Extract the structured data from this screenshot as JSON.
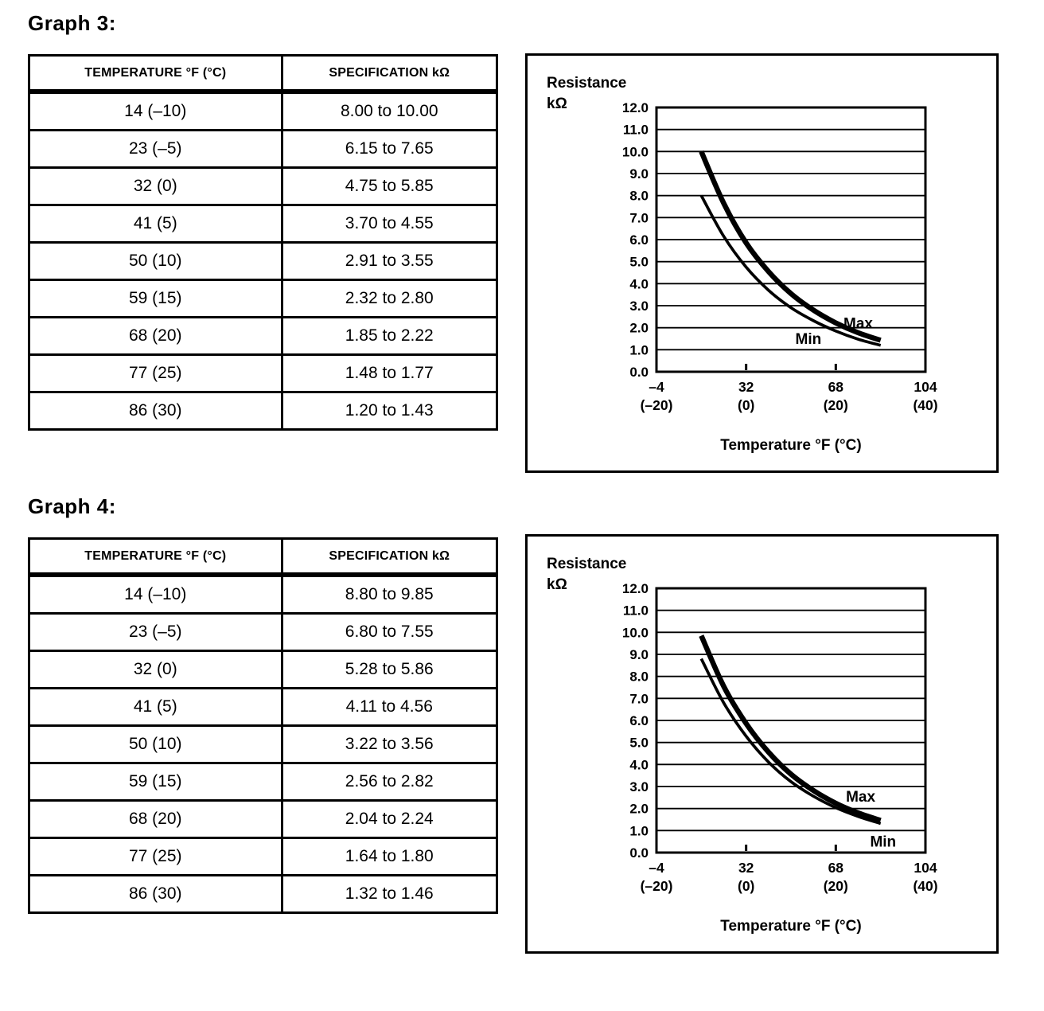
{
  "sections": [
    {
      "heading": "Graph 3:",
      "table": {
        "headers": [
          "TEMPERATURE °F (°C)",
          "SPECIFICATION kΩ"
        ],
        "rows": [
          [
            "14 (–10)",
            "8.00 to 10.00"
          ],
          [
            "23 (–5)",
            "6.15 to 7.65"
          ],
          [
            "32 (0)",
            "4.75 to 5.85"
          ],
          [
            "41 (5)",
            "3.70 to 4.55"
          ],
          [
            "50 (10)",
            "2.91 to 3.55"
          ],
          [
            "59 (15)",
            "2.32 to 2.80"
          ],
          [
            "68 (20)",
            "1.85 to 2.22"
          ],
          [
            "77 (25)",
            "1.48 to 1.77"
          ],
          [
            "86 (30)",
            "1.20 to 1.43"
          ]
        ]
      }
    },
    {
      "heading": "Graph 4:",
      "table": {
        "headers": [
          "TEMPERATURE °F (°C)",
          "SPECIFICATION kΩ"
        ],
        "rows": [
          [
            "14 (–10)",
            "8.80 to 9.85"
          ],
          [
            "23 (–5)",
            "6.80 to 7.55"
          ],
          [
            "32 (0)",
            "5.28 to 5.86"
          ],
          [
            "41 (5)",
            "4.11 to 4.56"
          ],
          [
            "50 (10)",
            "3.22 to 3.56"
          ],
          [
            "59 (15)",
            "2.56 to 2.82"
          ],
          [
            "68 (20)",
            "2.04 to 2.24"
          ],
          [
            "77 (25)",
            "1.64 to 1.80"
          ],
          [
            "86 (30)",
            "1.32 to 1.46"
          ]
        ]
      }
    }
  ],
  "chart_data": [
    {
      "type": "line",
      "title_lines": [
        "Resistance",
        "kΩ"
      ],
      "xlabel": "Temperature °F (°C)",
      "xlim": [
        -4,
        104
      ],
      "ylim": [
        0,
        12
      ],
      "grid": "horizontal",
      "x": [
        14,
        23,
        32,
        41,
        50,
        59,
        68,
        77,
        86
      ],
      "series": [
        {
          "name": "Max",
          "values": [
            10.0,
            7.65,
            5.85,
            4.55,
            3.55,
            2.8,
            2.22,
            1.77,
            1.43
          ],
          "label_at": {
            "x": 77,
            "y": 2.2
          }
        },
        {
          "name": "Min",
          "values": [
            8.0,
            6.15,
            4.75,
            3.7,
            2.91,
            2.32,
            1.85,
            1.48,
            1.2
          ],
          "label_at": {
            "x": 57,
            "y": 1.5
          }
        }
      ],
      "xticks": [
        {
          "f": "–4",
          "c": "(–20)",
          "value": -4
        },
        {
          "f": "32",
          "c": "(0)",
          "value": 32
        },
        {
          "f": "68",
          "c": "(20)",
          "value": 68
        },
        {
          "f": "104",
          "c": "(40)",
          "value": 104
        }
      ],
      "yticks": [
        0,
        1,
        2,
        3,
        4,
        5,
        6,
        7,
        8,
        9,
        10,
        11,
        12
      ]
    },
    {
      "type": "line",
      "title_lines": [
        "Resistance",
        "kΩ"
      ],
      "xlabel": "Temperature °F (°C)",
      "xlim": [
        -4,
        104
      ],
      "ylim": [
        0,
        12
      ],
      "grid": "horizontal",
      "x": [
        14,
        23,
        32,
        41,
        50,
        59,
        68,
        77,
        86
      ],
      "series": [
        {
          "name": "Max",
          "values": [
            9.85,
            7.55,
            5.86,
            4.56,
            3.56,
            2.82,
            2.24,
            1.8,
            1.46
          ],
          "label_at": {
            "x": 78,
            "y": 2.55
          }
        },
        {
          "name": "Min",
          "values": [
            8.8,
            6.8,
            5.28,
            4.11,
            3.22,
            2.56,
            2.04,
            1.64,
            1.32
          ],
          "label_at": {
            "x": 87,
            "y": 0.5
          }
        }
      ],
      "xticks": [
        {
          "f": "–4",
          "c": "(–20)",
          "value": -4
        },
        {
          "f": "32",
          "c": "(0)",
          "value": 32
        },
        {
          "f": "68",
          "c": "(20)",
          "value": 68
        },
        {
          "f": "104",
          "c": "(40)",
          "value": 104
        }
      ],
      "yticks": [
        0,
        1,
        2,
        3,
        4,
        5,
        6,
        7,
        8,
        9,
        10,
        11,
        12
      ]
    }
  ]
}
